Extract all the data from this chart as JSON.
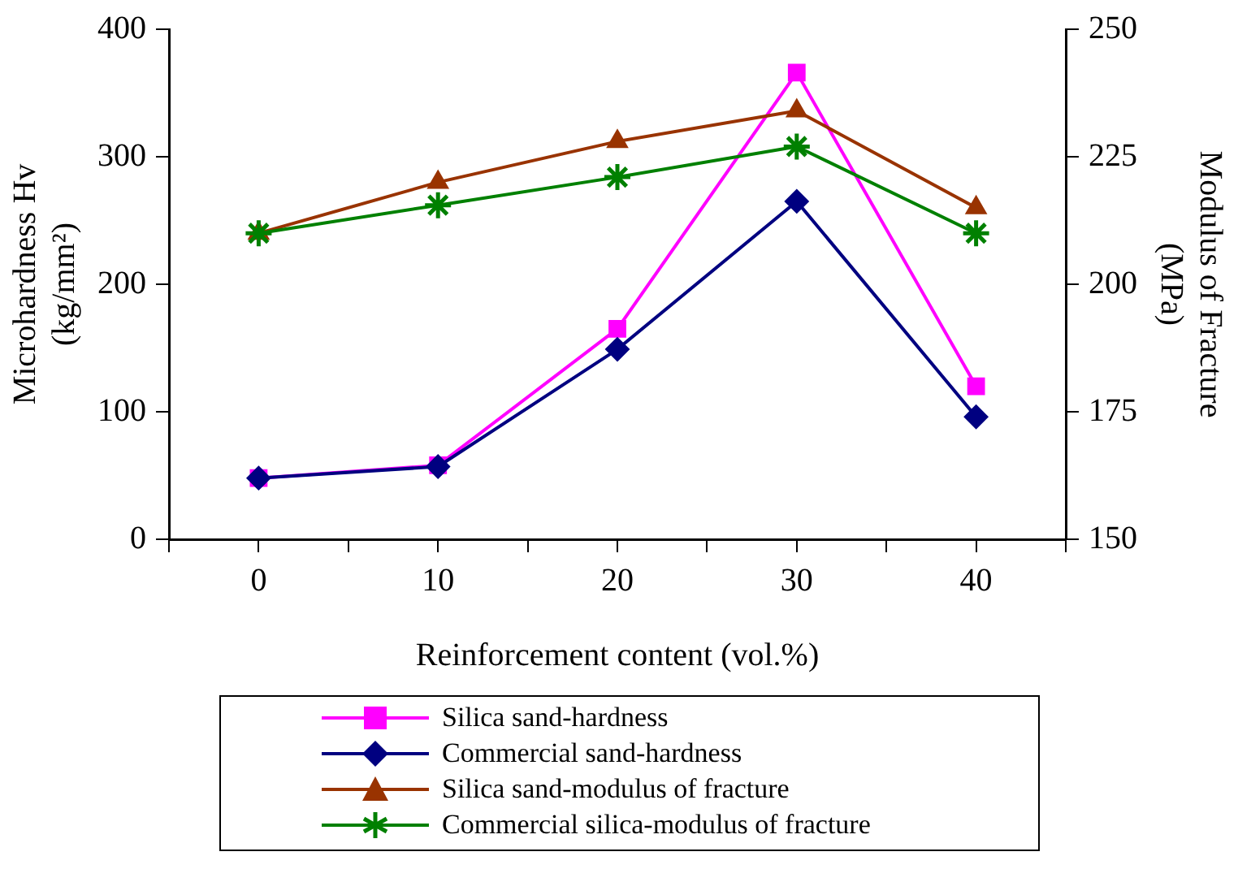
{
  "chart_data": {
    "type": "line",
    "xlabel": "Reinforcement content (vol.%)",
    "ylabel": "Microhardness Hv\n(kg/mm²)",
    "y2label": "Modulus of Fracture\n(MPa)",
    "x": [
      0,
      10,
      20,
      30,
      40
    ],
    "xlim": [
      -5,
      45
    ],
    "xticks": [
      {
        "value": -5,
        "label": null
      },
      0,
      {
        "value": 5,
        "label": null
      },
      10,
      {
        "value": 15,
        "label": null
      },
      20,
      {
        "value": 25,
        "label": null
      },
      30,
      {
        "value": 35,
        "label": null
      },
      40,
      {
        "value": 45,
        "label": null
      }
    ],
    "ylim": [
      0,
      400
    ],
    "yticks": [
      0,
      100,
      200,
      300,
      400
    ],
    "y2lim": [
      150,
      250
    ],
    "y2ticks": [
      150,
      175,
      200,
      225,
      250
    ],
    "grid": false,
    "legend": "bottom",
    "line_style": "solid",
    "series": [
      {
        "name": "Silica sand-hardness",
        "color": "#ff00ff",
        "marker": "square",
        "values": [
          48,
          58,
          165,
          366,
          120
        ]
      },
      {
        "name": "Commercial sand-hardness",
        "color": "#000080",
        "marker": "diamond",
        "values": [
          48,
          57,
          149,
          265,
          96
        ]
      },
      {
        "name": "Silica sand-modulus of fracture",
        "color": "#993300",
        "marker": "triangle",
        "axis": "y2",
        "values": [
          210,
          220,
          228,
          234,
          215
        ]
      },
      {
        "name": "Commercial silica-modulus of fracture",
        "color": "#008000",
        "marker": "cross",
        "axis": "y2",
        "values": [
          210,
          215.5,
          221,
          227,
          210
        ]
      }
    ]
  }
}
